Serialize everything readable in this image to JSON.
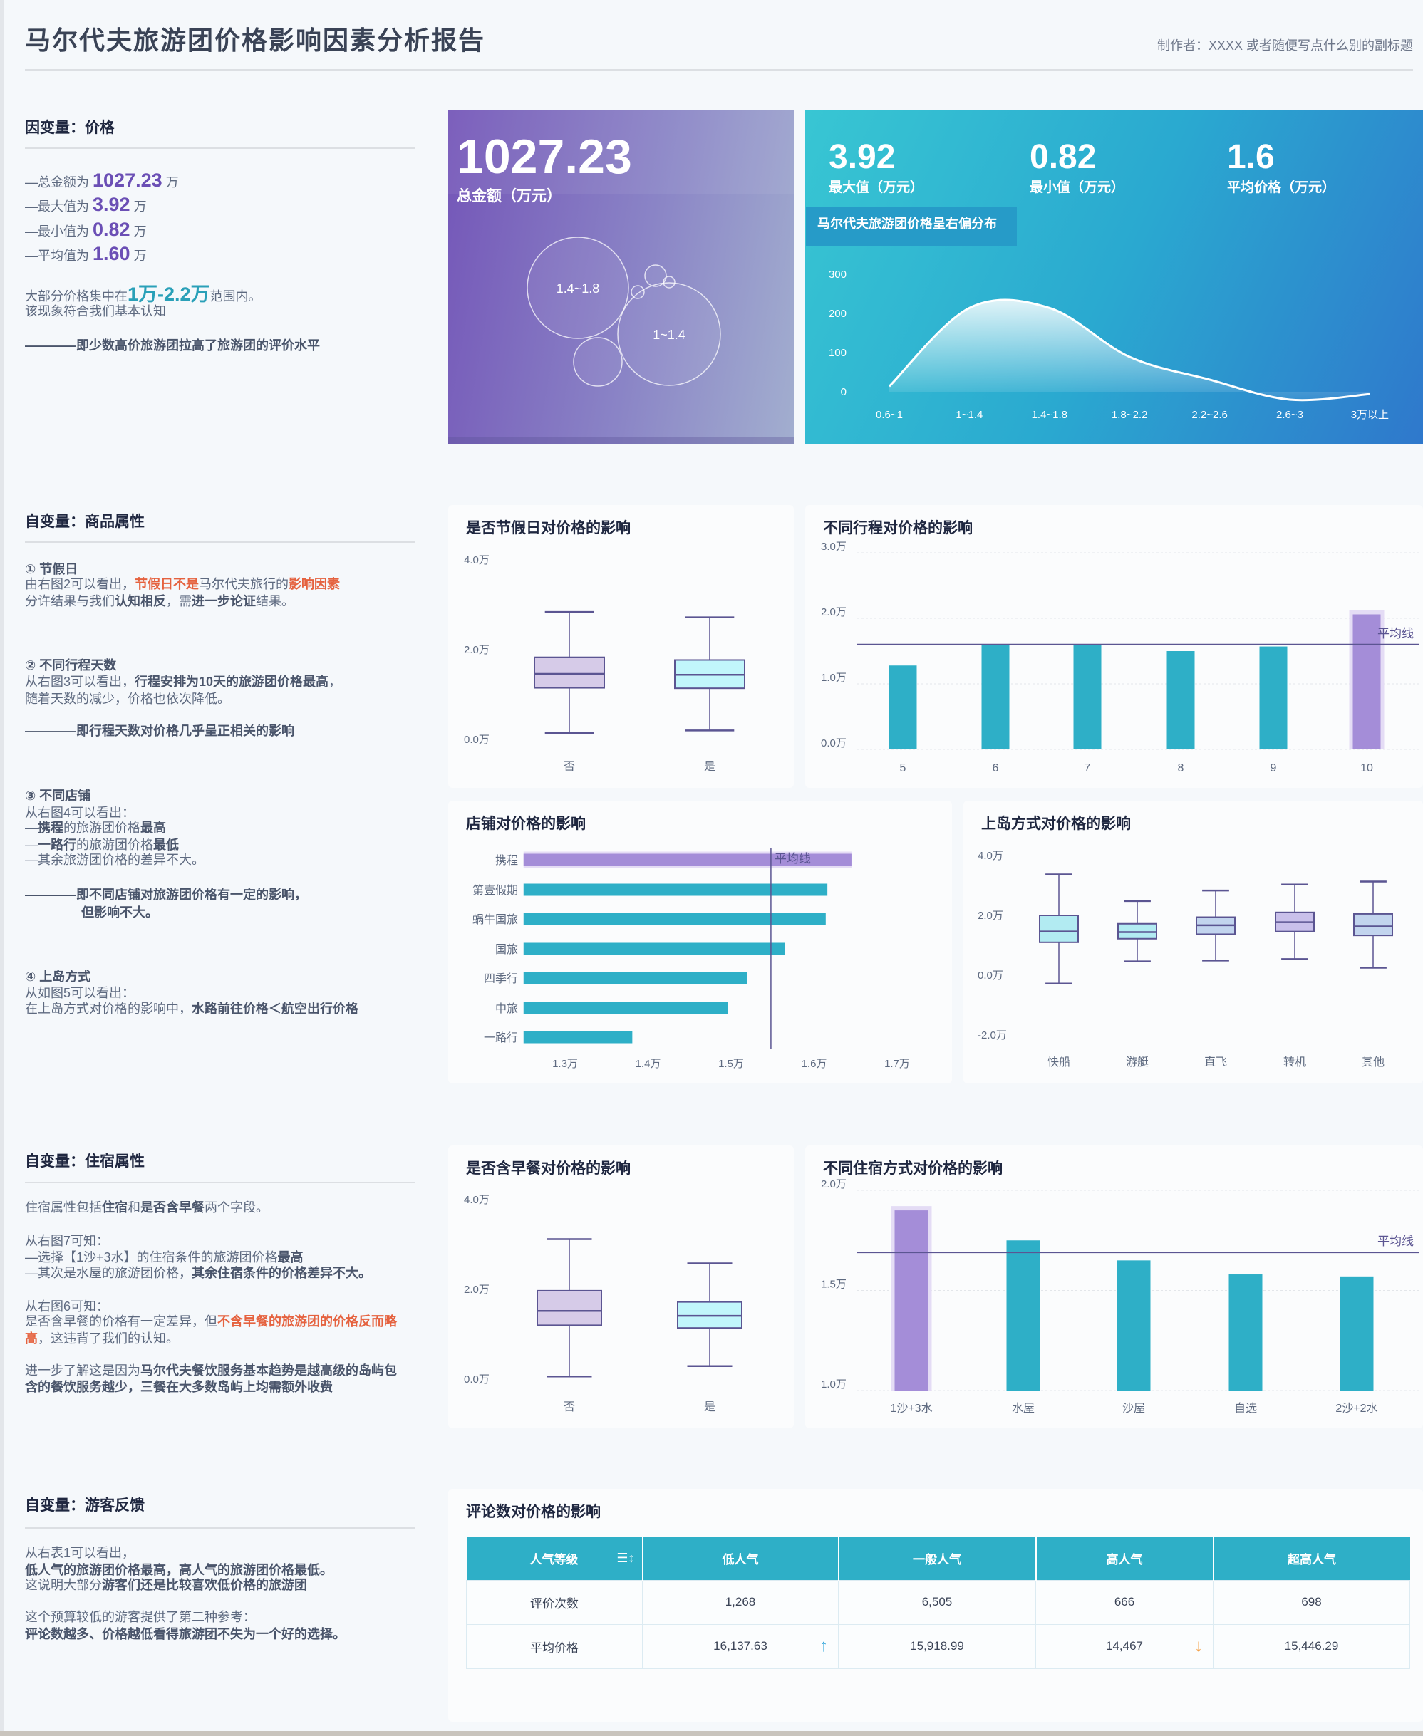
{
  "header": {
    "title": "马尔代夫旅游团价格影响因素分析报告",
    "subtitle": "制作者：XXXX 或者随便写点什么别的副标题"
  },
  "price": {
    "heading": "因变量：价格",
    "lines": [
      [
        {
          "t": "—总金额为 "
        },
        {
          "t": "1027.23",
          "em": "p"
        },
        {
          "t": " 万"
        }
      ],
      [
        {
          "t": "—最大值为 "
        },
        {
          "t": "3.92",
          "em": "p"
        },
        {
          "t": " 万"
        }
      ],
      [
        {
          "t": "—最小值为 "
        },
        {
          "t": "0.82",
          "em": "p"
        },
        {
          "t": " 万"
        }
      ],
      [
        {
          "t": "—平均值为 "
        },
        {
          "t": "1.60",
          "em": "p"
        },
        {
          "t": " 万"
        }
      ],
      [
        {
          "t": "大部分价格集中在"
        },
        {
          "t": "1万-2.2万",
          "em": "c"
        },
        {
          "t": "范围内。"
        }
      ],
      [
        {
          "t": "该现象符合我们基本认知"
        }
      ],
      [
        {
          "t": "————即少数高价旅游团拉高了旅游团的评价水平",
          "em": "b"
        }
      ]
    ]
  },
  "goods": {
    "heading": "自变量：商品属性",
    "lines": [
      [
        {
          "t": "① 节假日",
          "em": "b"
        }
      ],
      [
        {
          "t": "由右图2可以看出，"
        },
        {
          "t": "节假日不是",
          "em": "r"
        },
        {
          "t": "马尔代夫旅行的"
        },
        {
          "t": "影响因素",
          "em": "r"
        }
      ],
      [
        {
          "t": "分许结果与我们"
        },
        {
          "t": "认知相反",
          "em": "b"
        },
        {
          "t": "，需"
        },
        {
          "t": "进一步论证",
          "em": "b"
        },
        {
          "t": "结果。"
        }
      ],
      [
        {
          "t": "② 不同行程天数",
          "em": "b"
        }
      ],
      [
        {
          "t": "从右图3可以看出，"
        },
        {
          "t": "行程安排为10天的旅游团价格最高",
          "em": "b"
        },
        {
          "t": "，"
        }
      ],
      [
        {
          "t": "随着天数的减少，价格也依次降低。"
        }
      ],
      [
        {
          "t": "————即行程天数对价格几乎呈正相关的影响",
          "em": "b"
        }
      ],
      [
        {
          "t": "③ 不同店铺",
          "em": "b"
        }
      ],
      [
        {
          "t": "从右图4可以看出："
        }
      ],
      [
        {
          "t": "—"
        },
        {
          "t": "携程",
          "em": "b"
        },
        {
          "t": "的旅游团价格"
        },
        {
          "t": "最高",
          "em": "b"
        }
      ],
      [
        {
          "t": "—"
        },
        {
          "t": "一路行",
          "em": "b"
        },
        {
          "t": "的旅游团价格"
        },
        {
          "t": "最低",
          "em": "b"
        }
      ],
      [
        {
          "t": "—其余旅游团价格的差异不大。"
        }
      ],
      [
        {
          "t": "————即不同店铺对旅游团价格有一定的影响，",
          "em": "b"
        }
      ],
      [
        {
          "t": "但影响不大。",
          "em": "b"
        }
      ],
      [
        {
          "t": "④ 上岛方式",
          "em": "b"
        }
      ],
      [
        {
          "t": "从如图5可以看出："
        }
      ],
      [
        {
          "t": "在上岛方式对价格的影响中，"
        },
        {
          "t": "水路前往价格＜航空出行价格",
          "em": "b"
        }
      ]
    ]
  },
  "lodging": {
    "heading": "自变量：住宿属性",
    "lines": [
      [
        {
          "t": "住宿属性包括"
        },
        {
          "t": "住宿",
          "em": "b"
        },
        {
          "t": "和"
        },
        {
          "t": "是否含早餐",
          "em": "b"
        },
        {
          "t": "两个字段。"
        }
      ],
      [
        {
          "t": "从右图7可知："
        }
      ],
      [
        {
          "t": "—选择【1沙+3水】的住宿条件的旅游团价格"
        },
        {
          "t": "最高",
          "em": "b"
        }
      ],
      [
        {
          "t": "—其次是水屋的旅游团价格，"
        },
        {
          "t": "其余住宿条件的价格差异不大。",
          "em": "b"
        }
      ],
      [
        {
          "t": "从右图6可知："
        }
      ],
      [
        {
          "t": "是否含早餐的价格有一定差异，但"
        },
        {
          "t": "不含早餐的旅游团的价格反而略",
          "em": "r"
        }
      ],
      [
        {
          "t": "高",
          "em": "r"
        },
        {
          "t": "，这违背了我们的认知。"
        }
      ],
      [
        {
          "t": "进一步了解这是因为"
        },
        {
          "t": "马尔代夫餐饮服务基本趋势是越高级的岛屿包",
          "em": "b"
        }
      ],
      [
        {
          "t": "含的餐饮服务越少，三餐在大多数岛屿上均需额外收费",
          "em": "b"
        }
      ]
    ]
  },
  "feedback": {
    "heading": "自变量：游客反馈",
    "lines": [
      [
        {
          "t": "从右表1可以看出，"
        }
      ],
      [
        {
          "t": "低人气的旅游团价格最高，高人气的旅游团价格最低。",
          "em": "b"
        }
      ],
      [
        {
          "t": "这说明大部分"
        },
        {
          "t": "游客们还是比较喜欢低价格的旅游团",
          "em": "b"
        }
      ],
      [
        {
          "t": "这个预算较低的游客提供了第二种参考："
        }
      ],
      [
        {
          "t": "评论数越多、价格越低看得旅游团不失为一个好的选择。",
          "em": "b"
        }
      ]
    ]
  },
  "kpi": {
    "total_value": "1027.23",
    "total_label": "总金额（万元）",
    "max_value": "3.92",
    "max_label": "最大值（万元）",
    "min_value": "0.82",
    "min_label": "最小值（万元）",
    "avg_value": "1.6",
    "avg_label": "平均价格（万元）",
    "dist_badge": "马尔代夫旅游团价格呈右偏分布"
  },
  "colors": {
    "teal": "#2eafc7",
    "purple": "#a48dd8",
    "line": "#5b5592",
    "red": "#e5623f"
  },
  "chart_data": [
    {
      "type": "area",
      "title": "马尔代夫旅游团价格呈右偏分布",
      "categories": [
        "0.6~1",
        "1~1.4",
        "1.4~1.8",
        "1.8~2.2",
        "2.2~2.6",
        "2.6~3",
        "3万以上"
      ],
      "values": [
        14,
        214,
        214,
        89,
        31,
        -20,
        -6
      ],
      "yticks": [
        {
          "v": 0,
          "label": "0"
        },
        {
          "v": 100,
          "label": "100"
        },
        {
          "v": 200,
          "label": "200"
        },
        {
          "v": 300,
          "label": "300"
        }
      ],
      "ylim": [
        0,
        300
      ]
    },
    {
      "type": "bubble",
      "labels": [
        "1.4~1.8",
        "1~1.4"
      ]
    },
    {
      "type": "boxplot",
      "title": "是否节假日对价格的影响",
      "categories": [
        "否",
        "是"
      ],
      "stats": [
        {
          "min": 0.14,
          "q1": 1.15,
          "median": 1.46,
          "q3": 1.83,
          "max": 2.84
        },
        {
          "min": 0.2,
          "q1": 1.14,
          "median": 1.44,
          "q3": 1.77,
          "max": 2.72
        }
      ],
      "fills": [
        "#d6cbe8",
        "#c1f6fb"
      ],
      "yticks": [
        {
          "v": 0,
          "label": "0.0万"
        },
        {
          "v": 2,
          "label": "2.0万"
        },
        {
          "v": 4,
          "label": "4.0万"
        }
      ]
    },
    {
      "type": "bar",
      "title": "不同行程对价格的影响",
      "categories": [
        "5",
        "6",
        "7",
        "8",
        "9",
        "10"
      ],
      "values": [
        1.28,
        1.6,
        1.6,
        1.5,
        1.57,
        2.06
      ],
      "average": 1.6,
      "average_label": "平均线",
      "highlight_index": 5,
      "yticks": [
        {
          "v": 0,
          "label": "0.0万"
        },
        {
          "v": 1,
          "label": "1.0万"
        },
        {
          "v": 2,
          "label": "2.0万"
        },
        {
          "v": 3,
          "label": "3.0万"
        }
      ],
      "ylim": [
        0,
        3
      ]
    },
    {
      "type": "bar",
      "orientation": "horizontal",
      "title": "店铺对价格的影响",
      "categories": [
        "携程",
        "第壹假期",
        "蜗牛国旅",
        "国旅",
        "四季行",
        "中旅",
        "一路行"
      ],
      "values": [
        1.645,
        1.616,
        1.614,
        1.565,
        1.519,
        1.496,
        1.381
      ],
      "average": 1.548,
      "average_label": "平均线",
      "highlight_index": 0,
      "xticks": [
        {
          "v": 1.3,
          "label": "1.3万"
        },
        {
          "v": 1.4,
          "label": "1.4万"
        },
        {
          "v": 1.5,
          "label": "1.5万"
        },
        {
          "v": 1.6,
          "label": "1.6万"
        },
        {
          "v": 1.7,
          "label": "1.7万"
        }
      ],
      "xlim": [
        1.25,
        1.75
      ]
    },
    {
      "type": "boxplot",
      "title": "上岛方式对价格的影响",
      "categories": [
        "快船",
        "游艇",
        "直飞",
        "转机",
        "其他"
      ],
      "stats": [
        {
          "min": -0.28,
          "q1": 1.1,
          "median": 1.46,
          "q3": 2.0,
          "max": 3.37
        },
        {
          "min": 0.46,
          "q1": 1.22,
          "median": 1.44,
          "q3": 1.72,
          "max": 2.48
        },
        {
          "min": 0.49,
          "q1": 1.37,
          "median": 1.67,
          "q3": 1.94,
          "max": 2.83
        },
        {
          "min": 0.54,
          "q1": 1.46,
          "median": 1.77,
          "q3": 2.1,
          "max": 3.03
        },
        {
          "min": 0.25,
          "q1": 1.33,
          "median": 1.63,
          "q3": 2.05,
          "max": 3.13
        }
      ],
      "fills": [
        "#b2ebf2",
        "#b2ebf2",
        "#c2d4ee",
        "#c9c0ea",
        "#c2d4ee"
      ],
      "yticks": [
        {
          "v": -2,
          "label": "-2.0万"
        },
        {
          "v": 0,
          "label": "0.0万"
        },
        {
          "v": 2,
          "label": "2.0万"
        },
        {
          "v": 4,
          "label": "4.0万"
        }
      ]
    },
    {
      "type": "boxplot",
      "title": "是否含早餐对价格的影响",
      "categories": [
        "否",
        "是"
      ],
      "stats": [
        {
          "min": 0.06,
          "q1": 1.2,
          "median": 1.52,
          "q3": 1.97,
          "max": 3.12
        },
        {
          "min": 0.29,
          "q1": 1.14,
          "median": 1.41,
          "q3": 1.72,
          "max": 2.58
        }
      ],
      "fills": [
        "#d6cbe8",
        "#c1f6fb"
      ],
      "yticks": [
        {
          "v": 0,
          "label": "0.0万"
        },
        {
          "v": 2,
          "label": "2.0万"
        },
        {
          "v": 4,
          "label": "4.0万"
        }
      ]
    },
    {
      "type": "bar",
      "title": "不同住宿方式对价格的影响",
      "categories": [
        "1沙+3水",
        "水屋",
        "沙屋",
        "自选",
        "2沙+2水"
      ],
      "values": [
        1.9,
        1.75,
        1.65,
        1.58,
        1.57
      ],
      "average": 1.69,
      "average_label": "平均线",
      "highlight_index": 0,
      "yticks": [
        {
          "v": 1.0,
          "label": "1.0万"
        },
        {
          "v": 1.5,
          "label": "1.5万"
        },
        {
          "v": 2.0,
          "label": "2.0万"
        }
      ],
      "ylim": [
        1.0,
        2.0
      ]
    }
  ],
  "table": {
    "title": "评论数对价格的影响",
    "headers": [
      "人气等级",
      "低人气",
      "一般人气",
      "高人气",
      "超高人气"
    ],
    "rows": [
      [
        "评价次数",
        "1,268",
        "6,505",
        "666",
        "698"
      ],
      [
        "平均价格",
        "16,137.63",
        "15,918.99",
        "14,467",
        "15,446.29"
      ]
    ],
    "up_arrow_color": "#1a9bd7",
    "down_arrow_color": "#f4a24a"
  }
}
